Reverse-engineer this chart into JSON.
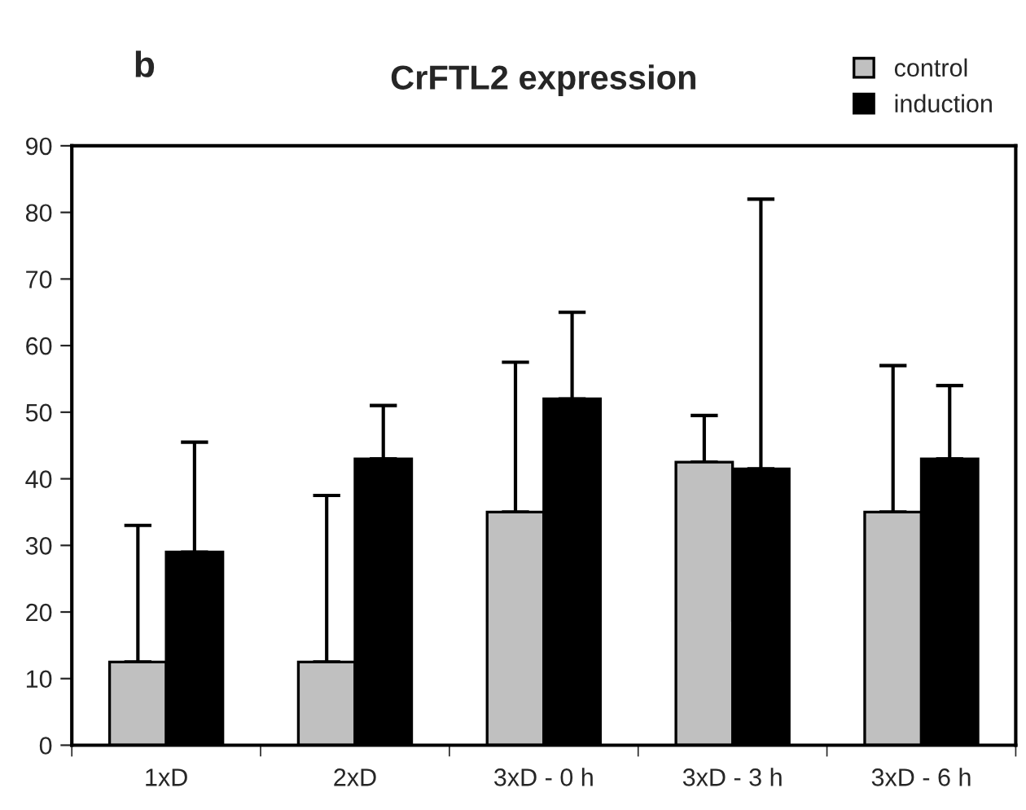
{
  "chart_data": {
    "type": "bar",
    "title": "CrFTL2 expression",
    "annotations": [
      "b"
    ],
    "categories": [
      "1xD",
      "2xD",
      "3xD - 0 h",
      "3xD - 3 h",
      "3xD - 6 h"
    ],
    "series": [
      {
        "name": "control",
        "color": "#c0c0c0",
        "values": [
          12.5,
          12.5,
          35,
          42.5,
          35
        ],
        "errors": [
          [
            12.5,
            33
          ],
          [
            12.5,
            37.5
          ],
          [
            35,
            57.5
          ],
          [
            42.5,
            49.5
          ],
          [
            35,
            57
          ]
        ]
      },
      {
        "name": "induction",
        "color": "#000000",
        "values": [
          29,
          43,
          52,
          41.5,
          43
        ],
        "errors": [
          [
            29,
            45.5
          ],
          [
            43,
            51
          ],
          [
            52,
            65
          ],
          [
            41.5,
            82
          ],
          [
            43,
            54
          ]
        ]
      }
    ],
    "ylim": [
      0,
      90
    ],
    "yticks": [
      0,
      10,
      20,
      30,
      40,
      50,
      60,
      70,
      80,
      90
    ],
    "grid": false,
    "legend": "top right"
  }
}
